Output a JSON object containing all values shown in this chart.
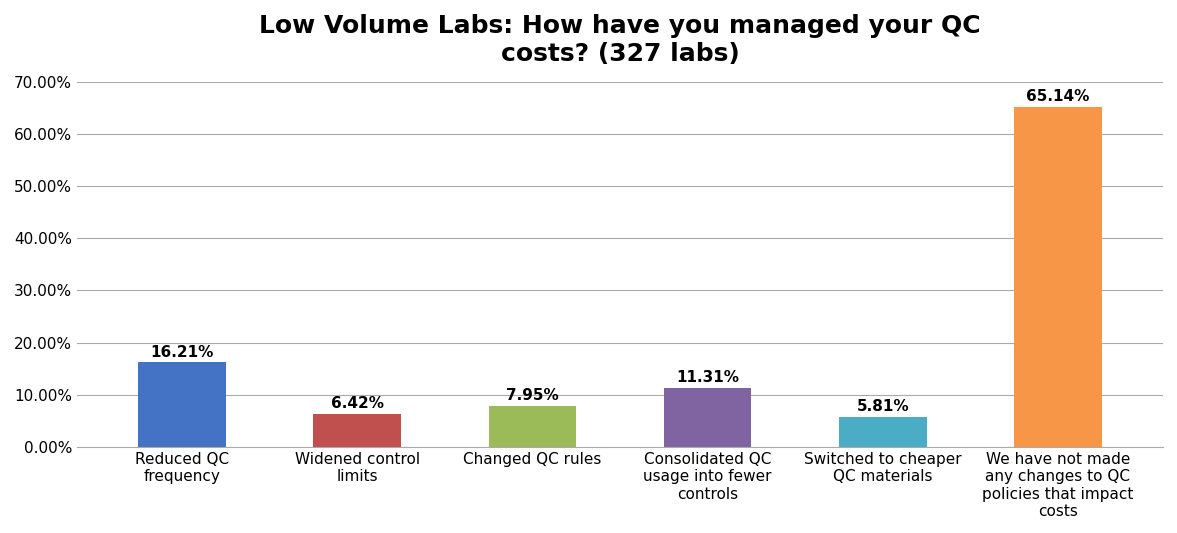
{
  "title": "Low Volume Labs: How have you managed your QC\ncosts? (327 labs)",
  "categories": [
    "Reduced QC\nfrequency",
    "Widened control\nlimits",
    "Changed QC rules",
    "Consolidated QC\nusage into fewer\ncontrols",
    "Switched to cheaper\nQC materials",
    "We have not made\nany changes to QC\npolicies that impact\ncosts"
  ],
  "values": [
    0.1621,
    0.0642,
    0.0795,
    0.1131,
    0.0581,
    0.6514
  ],
  "labels": [
    "16.21%",
    "6.42%",
    "7.95%",
    "11.31%",
    "5.81%",
    "65.14%"
  ],
  "bar_colors": [
    "#4472C4",
    "#C0504D",
    "#9BBB59",
    "#8064A2",
    "#4BACC6",
    "#F79646"
  ],
  "ylim": [
    0,
    0.7
  ],
  "yticks": [
    0.0,
    0.1,
    0.2,
    0.3,
    0.4,
    0.5,
    0.6,
    0.7
  ],
  "ytick_labels": [
    "0.00%",
    "10.00%",
    "20.00%",
    "30.00%",
    "40.00%",
    "50.00%",
    "60.00%",
    "70.00%"
  ],
  "background_color": "#FFFFFF",
  "title_fontsize": 18,
  "label_fontsize": 11,
  "tick_fontsize": 11
}
